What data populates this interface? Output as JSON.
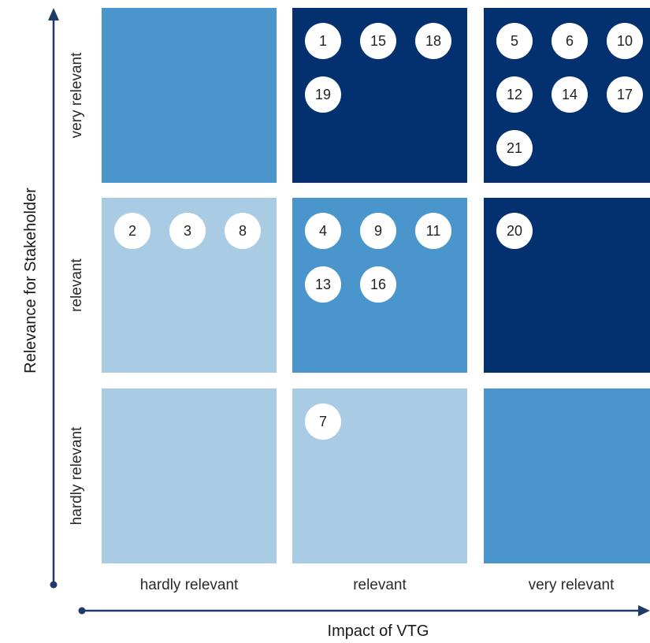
{
  "colors": {
    "dark": "#03316f",
    "medium": "#4a96cc",
    "light": "#a9cbe4",
    "axis": "#1f3a68",
    "badge": "#ffffff"
  },
  "axes": {
    "x_title": "Impact of VTG",
    "y_title": "Relevance for Stakeholder",
    "x_labels": [
      "hardly relevant",
      "relevant",
      "very relevant"
    ],
    "y_labels": [
      "very relevant",
      "relevant",
      "hardly relevant"
    ]
  },
  "grid": [
    [
      {
        "shade": "medium",
        "items": []
      },
      {
        "shade": "dark",
        "items": [
          "1",
          "15",
          "18",
          "19"
        ]
      },
      {
        "shade": "dark",
        "items": [
          "5",
          "6",
          "10",
          "12",
          "14",
          "17",
          "21"
        ]
      }
    ],
    [
      {
        "shade": "light",
        "items": [
          "2",
          "3",
          "8"
        ]
      },
      {
        "shade": "medium",
        "items": [
          "4",
          "9",
          "11",
          "13",
          "16"
        ]
      },
      {
        "shade": "dark",
        "items": [
          "20"
        ]
      }
    ],
    [
      {
        "shade": "light",
        "items": []
      },
      {
        "shade": "light",
        "items": [
          "7"
        ]
      },
      {
        "shade": "medium",
        "items": []
      }
    ]
  ]
}
